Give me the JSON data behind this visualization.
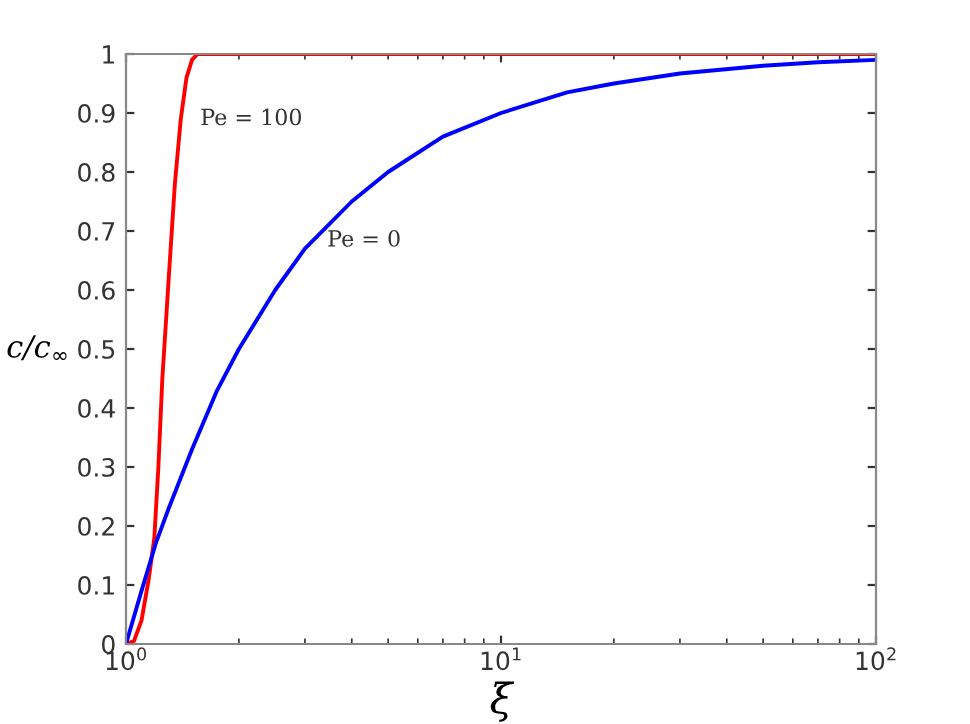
{
  "chart_data": {
    "type": "line",
    "xlabel": "ξ",
    "ylabel": "c/c$_{∞}$",
    "log": "x",
    "grid": false,
    "marker": "none",
    "line_style": "solid",
    "xlim": [
      1,
      100
    ],
    "ylim": [
      0,
      1
    ],
    "xticks": [
      {
        "value": 1,
        "label": "10$^{0}$"
      },
      {
        "value": 10,
        "label": "10$^{1}$"
      },
      {
        "value": 100,
        "label": "10$^{2}$"
      }
    ],
    "yticks": [
      0,
      {
        "value": 0.1,
        "label": "0.1"
      },
      {
        "value": 0.2,
        "label": "0.2"
      },
      {
        "value": 0.3,
        "label": "0.3"
      },
      {
        "value": 0.4,
        "label": "0.4"
      },
      {
        "value": 0.5,
        "label": "0.5"
      },
      {
        "value": 0.6,
        "label": "0.6"
      },
      {
        "value": 0.7,
        "label": "0.7"
      },
      {
        "value": 0.8,
        "label": "0.8"
      },
      {
        "value": 0.9,
        "label": "0.9"
      },
      1
    ],
    "series": [
      {
        "name": "Pe = 100",
        "color": "#ff0000",
        "x": [
          1,
          1.05,
          1.1,
          1.15,
          1.19,
          1.22,
          1.25,
          1.3,
          1.35,
          1.4,
          1.45,
          1.5,
          1.55,
          100
        ],
        "values": [
          0,
          0.005,
          0.04,
          0.11,
          0.18,
          0.3,
          0.45,
          0.62,
          0.78,
          0.89,
          0.96,
          0.99,
          1,
          1
        ]
      },
      {
        "name": "Pe = 0",
        "color": "#0000ff",
        "x": [
          1,
          1.1,
          1.2,
          1.3,
          1.5,
          1.75,
          2,
          2.5,
          3,
          4,
          5,
          7,
          10,
          15,
          20,
          30,
          50,
          70,
          100
        ],
        "values": [
          0,
          0.09,
          0.17,
          0.23,
          0.33,
          0.43,
          0.5,
          0.6,
          0.67,
          0.75,
          0.8,
          0.86,
          0.9,
          0.935,
          0.95,
          0.967,
          0.98,
          0.986,
          0.99
        ]
      }
    ]
  }
}
